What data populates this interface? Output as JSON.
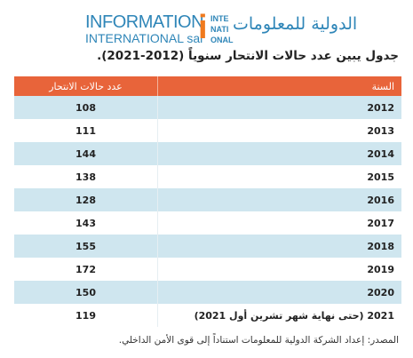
{
  "header": {
    "logo_line1": "INFORMATION",
    "logo_line2": "INTERNATIONAL sal",
    "logo_mark": [
      "INTE",
      "NATI",
      "ONAL"
    ],
    "logo_arabic": "الدولية للمعلومات"
  },
  "title": "جدول يبين عدد حالات الانتحار سنوياً (2012-2021).",
  "table": {
    "columns": [
      "السنة",
      "عدد حالات الانتحار"
    ],
    "rows": [
      [
        "2012",
        "108"
      ],
      [
        "2013",
        "111"
      ],
      [
        "2014",
        "144"
      ],
      [
        "2015",
        "138"
      ],
      [
        "2016",
        "128"
      ],
      [
        "2017",
        "143"
      ],
      [
        "2018",
        "155"
      ],
      [
        "2019",
        "172"
      ],
      [
        "2020",
        "150"
      ],
      [
        "2021 (حتى نهاية شهر تشرين أول 2021)",
        "119"
      ]
    ]
  },
  "source": "المصدر: إعداد الشركة الدولية للمعلومات استناداً إلى قوى الأمن الداخلي."
}
